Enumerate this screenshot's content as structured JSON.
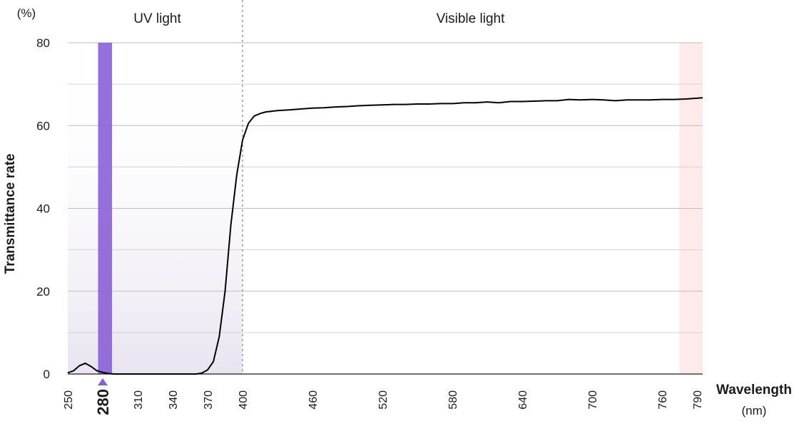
{
  "chart_data": {
    "type": "line",
    "ylabel": "Transmittance rate",
    "y_unit": "(%)",
    "xlabel": "Wavelength",
    "x_unit": "(nm)",
    "ylim": [
      0,
      80
    ],
    "yticks": [
      0,
      20,
      40,
      60,
      80
    ],
    "xlim": [
      250,
      795
    ],
    "xticks": [
      250,
      310,
      340,
      370,
      400,
      460,
      520,
      580,
      640,
      700,
      760,
      790
    ],
    "highlight_tick": 280,
    "highlight_tick_label": "280",
    "regions": [
      {
        "label": "UV light",
        "from": 250,
        "to": 400
      },
      {
        "label": "Visible light",
        "from": 400,
        "to": 795
      }
    ],
    "boundary_x": 400,
    "uv_band": {
      "from": 276,
      "to": 288,
      "color": "#8a5fd6"
    },
    "ir_band": {
      "from": 775,
      "to": 795,
      "color": "#fdeaea"
    },
    "series": [
      {
        "color": "#000000",
        "x": [
          250,
          255,
          260,
          265,
          270,
          275,
          280,
          285,
          290,
          300,
          310,
          320,
          330,
          340,
          350,
          355,
          360,
          365,
          370,
          375,
          380,
          385,
          390,
          395,
          400,
          405,
          410,
          415,
          420,
          430,
          440,
          450,
          460,
          470,
          480,
          490,
          500,
          510,
          520,
          530,
          540,
          550,
          560,
          570,
          580,
          590,
          600,
          610,
          620,
          630,
          640,
          650,
          660,
          670,
          680,
          690,
          700,
          710,
          720,
          730,
          740,
          750,
          760,
          770,
          780,
          790,
          795
        ],
        "y": [
          0.3,
          0.8,
          2.0,
          2.6,
          1.8,
          0.8,
          0.4,
          0.1,
          0,
          0,
          0,
          0,
          0,
          0,
          0,
          0,
          0,
          0.2,
          1.0,
          3.0,
          9.0,
          20.0,
          36.0,
          48.0,
          56.5,
          60.5,
          62.3,
          62.9,
          63.3,
          63.6,
          63.8,
          64.0,
          64.2,
          64.3,
          64.5,
          64.6,
          64.8,
          64.9,
          65.0,
          65.1,
          65.1,
          65.2,
          65.2,
          65.3,
          65.3,
          65.5,
          65.5,
          65.7,
          65.5,
          65.8,
          65.8,
          65.9,
          66.0,
          66.0,
          66.3,
          66.2,
          66.3,
          66.2,
          66.0,
          66.2,
          66.2,
          66.2,
          66.3,
          66.3,
          66.4,
          66.6,
          66.7
        ]
      }
    ],
    "grid": true
  }
}
